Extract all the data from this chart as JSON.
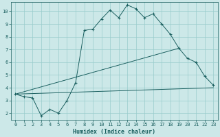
{
  "xlabel": "Humidex (Indice chaleur)",
  "bg_color": "#cce8e8",
  "grid_color": "#99cccc",
  "line_color": "#1a5f5f",
  "xlim": [
    -0.5,
    23.5
  ],
  "ylim": [
    1.5,
    10.7
  ],
  "xticks": [
    0,
    1,
    2,
    3,
    4,
    5,
    6,
    7,
    8,
    9,
    10,
    11,
    12,
    13,
    14,
    15,
    16,
    17,
    18,
    19,
    20,
    21,
    22,
    23
  ],
  "yticks": [
    2,
    3,
    4,
    5,
    6,
    7,
    8,
    9,
    10
  ],
  "line1_x": [
    0,
    1,
    2,
    3,
    4,
    5,
    6,
    7,
    8,
    9,
    10,
    11,
    12,
    13,
    14,
    15,
    16,
    17,
    18,
    19,
    20,
    21,
    22,
    23
  ],
  "line1_y": [
    3.5,
    3.3,
    3.2,
    1.8,
    2.3,
    2.0,
    3.0,
    4.4,
    8.5,
    8.6,
    9.4,
    10.1,
    9.5,
    10.5,
    10.2,
    9.5,
    9.8,
    9.0,
    8.2,
    7.1,
    6.3,
    6.0,
    4.9,
    4.2
  ],
  "line2_x": [
    0,
    19
  ],
  "line2_y": [
    3.5,
    7.1
  ],
  "line3_x": [
    0,
    23
  ],
  "line3_y": [
    3.5,
    4.0
  ]
}
